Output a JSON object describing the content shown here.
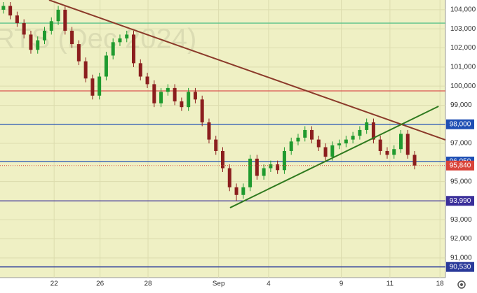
{
  "chart_data": {
    "type": "candlestick",
    "watermark": "RTS (Dec 2024)",
    "x": [
      0,
      1,
      2,
      3,
      4,
      5,
      6,
      7,
      8,
      9,
      10,
      11,
      12,
      13,
      14,
      15,
      16,
      17,
      18,
      19,
      20,
      21,
      22,
      23,
      24,
      25,
      26,
      27,
      28,
      29,
      30,
      31,
      32,
      33,
      34,
      35,
      36,
      37,
      38,
      39,
      40,
      41,
      42,
      43,
      44,
      45,
      46,
      47,
      48,
      49,
      50,
      51,
      52,
      53,
      54,
      55,
      56,
      57,
      58,
      59,
      60
    ],
    "open": [
      104000,
      104200,
      103700,
      103300,
      102700,
      101900,
      102400,
      102900,
      103400,
      104000,
      102900,
      102200,
      101300,
      100400,
      99500,
      100500,
      101600,
      102300,
      102500,
      102700,
      101200,
      100500,
      100100,
      99100,
      99700,
      99900,
      99200,
      98900,
      99700,
      99300,
      98100,
      97200,
      96600,
      95700,
      94700,
      94300,
      94700,
      96200,
      95300,
      95700,
      95900,
      95600,
      96600,
      97100,
      97300,
      97700,
      97200,
      96800,
      96300,
      96900,
      97000,
      97200,
      97400,
      97700,
      98100,
      97200,
      96600,
      96400,
      96700,
      97500,
      96400
    ],
    "high": [
      104400,
      104400,
      103900,
      103500,
      102900,
      102600,
      103100,
      103600,
      104200,
      104200,
      103100,
      102400,
      101500,
      100600,
      100700,
      101800,
      102500,
      102700,
      102900,
      102900,
      101400,
      100700,
      100300,
      99900,
      100100,
      100100,
      99400,
      99900,
      99900,
      99500,
      98300,
      97400,
      96800,
      95900,
      94900,
      94900,
      96400,
      96400,
      95900,
      96100,
      96100,
      96800,
      97300,
      97500,
      97900,
      97900,
      97400,
      97000,
      97100,
      97200,
      97400,
      97600,
      97900,
      98300,
      98300,
      97400,
      96800,
      96900,
      97700,
      97700,
      96600
    ],
    "low": [
      103800,
      103500,
      103100,
      102500,
      101700,
      101700,
      102200,
      102700,
      103200,
      102700,
      102000,
      101100,
      100200,
      99300,
      99300,
      100300,
      101400,
      102100,
      102300,
      101000,
      100300,
      99900,
      98900,
      98900,
      99500,
      99000,
      98700,
      98700,
      99100,
      97900,
      97000,
      96400,
      95500,
      94500,
      94000,
      94100,
      94500,
      95100,
      95100,
      95500,
      95400,
      95400,
      96400,
      96900,
      97100,
      97000,
      96600,
      96100,
      96100,
      96700,
      96800,
      97000,
      97200,
      97500,
      97000,
      96400,
      96200,
      96200,
      96500,
      96200,
      95640
    ],
    "close": [
      104200,
      103700,
      103300,
      102700,
      101900,
      102400,
      102900,
      103400,
      104000,
      102900,
      102200,
      101300,
      100400,
      99500,
      100500,
      101600,
      102300,
      102500,
      102700,
      101200,
      100500,
      100100,
      99100,
      99700,
      99900,
      99200,
      98900,
      99700,
      99300,
      98100,
      97200,
      96600,
      95700,
      94700,
      94300,
      94700,
      96200,
      95300,
      95700,
      95900,
      95600,
      96600,
      97100,
      97300,
      97700,
      97200,
      96800,
      96300,
      96900,
      97000,
      97200,
      97400,
      97700,
      98100,
      97200,
      96600,
      96400,
      96700,
      97500,
      96400,
      95840
    ],
    "up_color": "#1f9a2e",
    "down_color": "#8b1e1e",
    "xlim": [
      -0.5,
      64.5
    ],
    "xticks": [
      {
        "value": 7.4,
        "label": "22"
      },
      {
        "value": 14.1,
        "label": "26"
      },
      {
        "value": 21.1,
        "label": "28"
      },
      {
        "value": 31.4,
        "label": "Sep"
      },
      {
        "value": 38.7,
        "label": "4"
      },
      {
        "value": 49.3,
        "label": "9"
      },
      {
        "value": 56.4,
        "label": "11"
      },
      {
        "value": 63.7,
        "label": "18"
      }
    ],
    "ylim": [
      89970,
      104510
    ],
    "yticks": [
      {
        "value": 104000,
        "label": "104,000"
      },
      {
        "value": 103000,
        "label": "103,000"
      },
      {
        "value": 102000,
        "label": "102,000"
      },
      {
        "value": 101000,
        "label": "101,000"
      },
      {
        "value": 100000,
        "label": "100,000"
      },
      {
        "value": 99000,
        "label": "99,000"
      },
      {
        "value": 97000,
        "label": "97,000"
      },
      {
        "value": 95000,
        "label": "95,000"
      },
      {
        "value": 93000,
        "label": "93,000"
      },
      {
        "value": 92000,
        "label": "92,000"
      },
      {
        "value": 91000,
        "label": "91,000"
      }
    ],
    "grid": true,
    "levels": [
      {
        "value": 103300,
        "color": "#5cc28a"
      },
      {
        "value": 99750,
        "color": "#d9534f"
      },
      {
        "value": 98000,
        "color": "#1f4fb4",
        "label": "98,000"
      },
      {
        "value": 96050,
        "color": "#1f4fb4",
        "label": "96,050"
      },
      {
        "value": 93990,
        "color": "#3a2f9a",
        "label": "93,990"
      },
      {
        "value": 90530,
        "color": "#2a3a9a",
        "label": "90,530"
      }
    ],
    "last_price": {
      "value": 95840,
      "label": "95,840",
      "color": "#d9443a"
    },
    "trendlines": [
      {
        "color": "#8b3a2a",
        "points": [
          [
            6.66,
            104510
          ],
          [
            64.5,
            97184
          ]
        ]
      },
      {
        "color": "#2f7a1f",
        "points": [
          [
            33.07,
            93631
          ],
          [
            63.5,
            98942
          ]
        ]
      }
    ]
  }
}
